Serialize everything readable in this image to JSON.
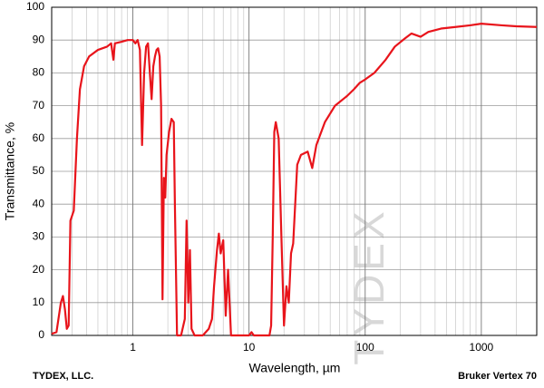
{
  "chart_data": {
    "type": "line",
    "title": null,
    "x_label": "Wavelength, µm",
    "y_label": "Transmittance, %",
    "footer_left": "TYDEX, LLC.",
    "footer_right": "Bruker Vertex 70",
    "watermark": "TYDEX",
    "log_x": true,
    "grid": true,
    "xlim": [
      0.2,
      3000
    ],
    "ylim": [
      0,
      100
    ],
    "xticks": [
      1,
      10,
      100,
      1000
    ],
    "xminor": [
      0.3,
      0.4,
      0.5,
      0.6,
      0.7,
      0.8,
      0.9,
      2,
      3,
      4,
      5,
      6,
      7,
      8,
      9,
      20,
      30,
      40,
      50,
      60,
      70,
      80,
      90,
      200,
      300,
      400,
      500,
      600,
      700,
      800,
      900,
      2000
    ],
    "yticks": [
      0,
      10,
      20,
      30,
      40,
      50,
      60,
      70,
      80,
      90,
      100
    ],
    "series": [
      {
        "name": "Transmittance",
        "color": "#e8141b",
        "x": [
          0.2,
          0.22,
          0.24,
          0.25,
          0.26,
          0.27,
          0.28,
          0.29,
          0.31,
          0.33,
          0.35,
          0.38,
          0.42,
          0.5,
          0.6,
          0.65,
          0.68,
          0.7,
          0.8,
          0.9,
          1.0,
          1.05,
          1.1,
          1.15,
          1.2,
          1.25,
          1.3,
          1.35,
          1.4,
          1.45,
          1.5,
          1.55,
          1.6,
          1.65,
          1.7,
          1.75,
          1.8,
          1.85,
          1.9,
          1.95,
          2.05,
          2.15,
          2.25,
          2.3,
          2.4,
          2.6,
          2.8,
          2.9,
          3.0,
          3.1,
          3.2,
          3.4,
          4.0,
          4.5,
          4.8,
          5.0,
          5.3,
          5.5,
          5.7,
          6.0,
          6.3,
          6.6,
          7.0,
          8,
          10,
          10.5,
          11,
          15,
          15.5,
          16,
          16.5,
          17,
          18,
          19,
          20,
          21,
          22,
          23,
          24,
          26,
          28,
          32,
          35,
          38,
          45,
          55,
          70,
          80,
          90,
          100,
          120,
          150,
          180,
          220,
          250,
          300,
          350,
          450,
          600,
          800,
          1000,
          1500,
          2000,
          3000
        ],
        "values": [
          0.5,
          1,
          10,
          12,
          8,
          2,
          3,
          35,
          38,
          60,
          75,
          82,
          85,
          87,
          88,
          89,
          84,
          89,
          89.5,
          90,
          90,
          89,
          90,
          87,
          58,
          80,
          88,
          89,
          80,
          72,
          82,
          85,
          87,
          87.5,
          85,
          70,
          11,
          48,
          42,
          55,
          62,
          66,
          65,
          40,
          0,
          0,
          5,
          35,
          10,
          26,
          2,
          0,
          0,
          2,
          5,
          15,
          26,
          31,
          25,
          29,
          6,
          20,
          0,
          0,
          0,
          1,
          0,
          0,
          3,
          30,
          62,
          65,
          60,
          30,
          3,
          15,
          10,
          25,
          28,
          52,
          55,
          56,
          51,
          58,
          65,
          70,
          73,
          75,
          77,
          78,
          80,
          84,
          88,
          90.5,
          92,
          91,
          92.5,
          93.5,
          94,
          94.5,
          95,
          94.5,
          94.2,
          94
        ]
      }
    ]
  }
}
